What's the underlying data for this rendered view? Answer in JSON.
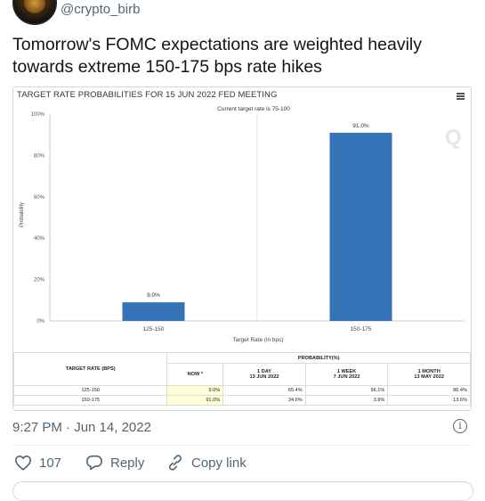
{
  "tweet": {
    "handle": "@crypto_birb",
    "text": "Tomorrow's FOMC expectations are weighted heavily towards extreme 150-175 bps rate hikes",
    "timestamp": "9:27 PM · Jun 14, 2022",
    "likes": "107",
    "reply_label": "Reply",
    "copy_link_label": "Copy link"
  },
  "card": {
    "title": "TARGET RATE PROBABILITIES FOR 15 JUN 2022 FED MEETING",
    "watermark": "Q"
  },
  "chart_data": {
    "type": "bar",
    "title": "TARGET RATE PROBABILITIES FOR 15 JUN 2022 FED MEETING",
    "subtitle": "Current target rate is 75-100",
    "categories": [
      "125-150",
      "150-175"
    ],
    "values": [
      9.0,
      91.0
    ],
    "data_labels": [
      "9.0%",
      "91.0%"
    ],
    "xlabel": "Target Rate (in bps)",
    "ylabel": "Probability",
    "ylim": [
      0,
      100
    ],
    "yticks": [
      "0%",
      "20%",
      "40%",
      "60%",
      "80%",
      "100%"
    ],
    "bar_color": "#3573b9",
    "grid": "vertical"
  },
  "table": {
    "target_header": "TARGET RATE (BPS)",
    "probability_header": "PROBABILITY(%)",
    "columns": [
      {
        "line1": "NOW *",
        "line2": ""
      },
      {
        "line1": "1 DAY",
        "line2": "13 JUN 2022"
      },
      {
        "line1": "1 WEEK",
        "line2": "7 JUN 2022"
      },
      {
        "line1": "1 MONTH",
        "line2": "13 MAY 2022"
      }
    ],
    "rows": [
      {
        "target": "125-150",
        "values": [
          "9.0%",
          "65.4%",
          "96.1%",
          "86.4%"
        ]
      },
      {
        "target": "150-175",
        "values": [
          "91.0%",
          "34.6%",
          "3.9%",
          "13.6%"
        ]
      }
    ],
    "now_highlight_color": "#ffffd8"
  }
}
